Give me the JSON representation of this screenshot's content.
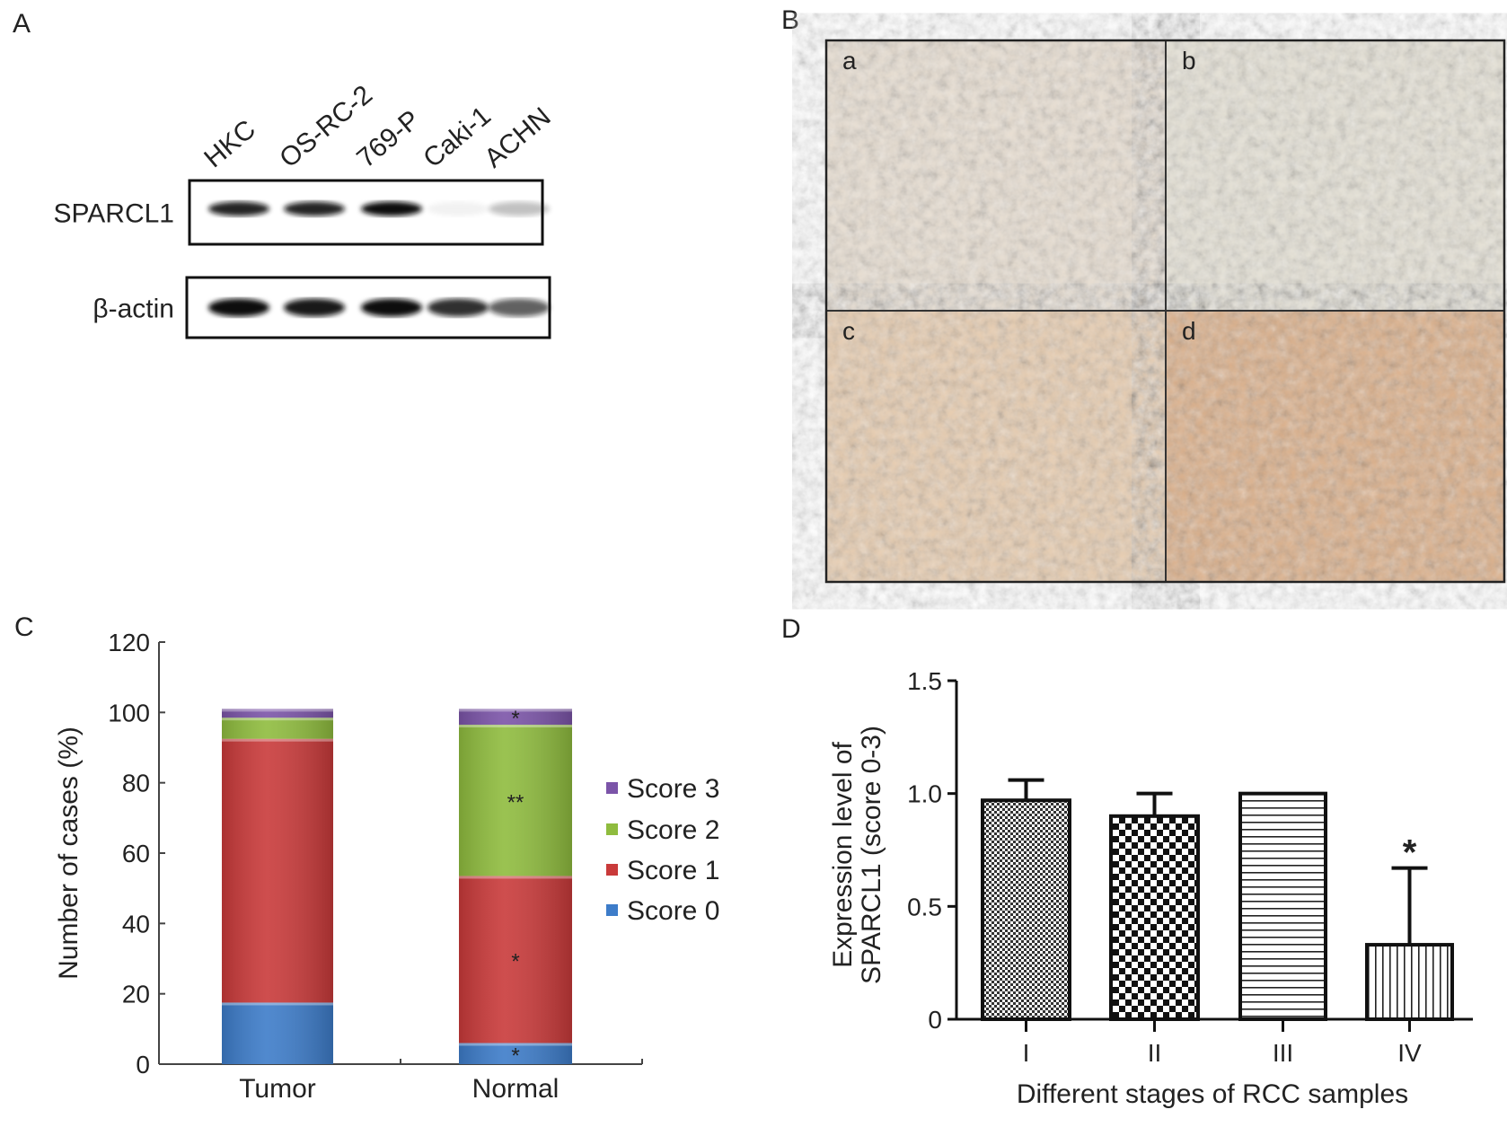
{
  "panel_labels": {
    "a": "A",
    "b": "B",
    "c": "C",
    "d": "D"
  },
  "western_blot": {
    "lanes": [
      "HKC",
      "OS-RC-2",
      "769-P",
      "Caki-1",
      "ACHN"
    ],
    "rows": [
      {
        "label": "SPARCL1",
        "band_intensity": [
          0.9,
          0.9,
          1.0,
          0.05,
          0.25
        ]
      },
      {
        "label": "β-actin",
        "band_intensity": [
          1.0,
          0.95,
          1.0,
          0.85,
          0.65
        ]
      }
    ]
  },
  "ihc": {
    "sub_labels": [
      "a",
      "b",
      "c",
      "d"
    ],
    "stain_colors": [
      "#e9dfd2",
      "#e6e2d6",
      "#e8cdb0",
      "#dcb08a"
    ]
  },
  "chart_data": [
    {
      "type": "bar",
      "stacked": true,
      "categories": [
        "Tumor",
        "Normal"
      ],
      "ylabel": "Number of cases (%)",
      "ylim": [
        0,
        120
      ],
      "yticks": [
        "0",
        "20",
        "40",
        "60",
        "80",
        "100",
        "120"
      ],
      "grid": false,
      "legend_placement": "right",
      "series": [
        {
          "name": "Score 0",
          "values": [
            17.5,
            6
          ],
          "color": "#3d7cc9",
          "annotations": [
            "",
            "*"
          ]
        },
        {
          "name": "Score 1",
          "values": [
            75,
            47.5
          ],
          "color": "#c93a3a",
          "annotations": [
            "",
            "*"
          ]
        },
        {
          "name": "Score 2",
          "values": [
            6,
            43
          ],
          "color": "#8fbc3e",
          "annotations": [
            "",
            "**"
          ]
        },
        {
          "name": "Score 3",
          "values": [
            2.5,
            4.5
          ],
          "color": "#7b54a8",
          "annotations": [
            "",
            "*"
          ]
        }
      ]
    },
    {
      "type": "bar",
      "categories": [
        "I",
        "II",
        "III",
        "IV"
      ],
      "values": [
        0.97,
        0.9,
        1.0,
        0.33
      ],
      "errors": [
        0.09,
        0.1,
        0.0,
        0.34
      ],
      "annotations": [
        "",
        "",
        "",
        "*"
      ],
      "patterns": [
        "fine-checker",
        "checker",
        "horizontal-lines",
        "vertical-lines"
      ],
      "xlabel": "Different stages of RCC samples",
      "ylabel": [
        "Expression level of",
        "SPARCL1 (score 0-3)"
      ],
      "ylim": [
        0,
        1.5
      ],
      "yticks": [
        "0",
        "0.5",
        "1.0",
        "1.5"
      ],
      "grid": false
    }
  ]
}
